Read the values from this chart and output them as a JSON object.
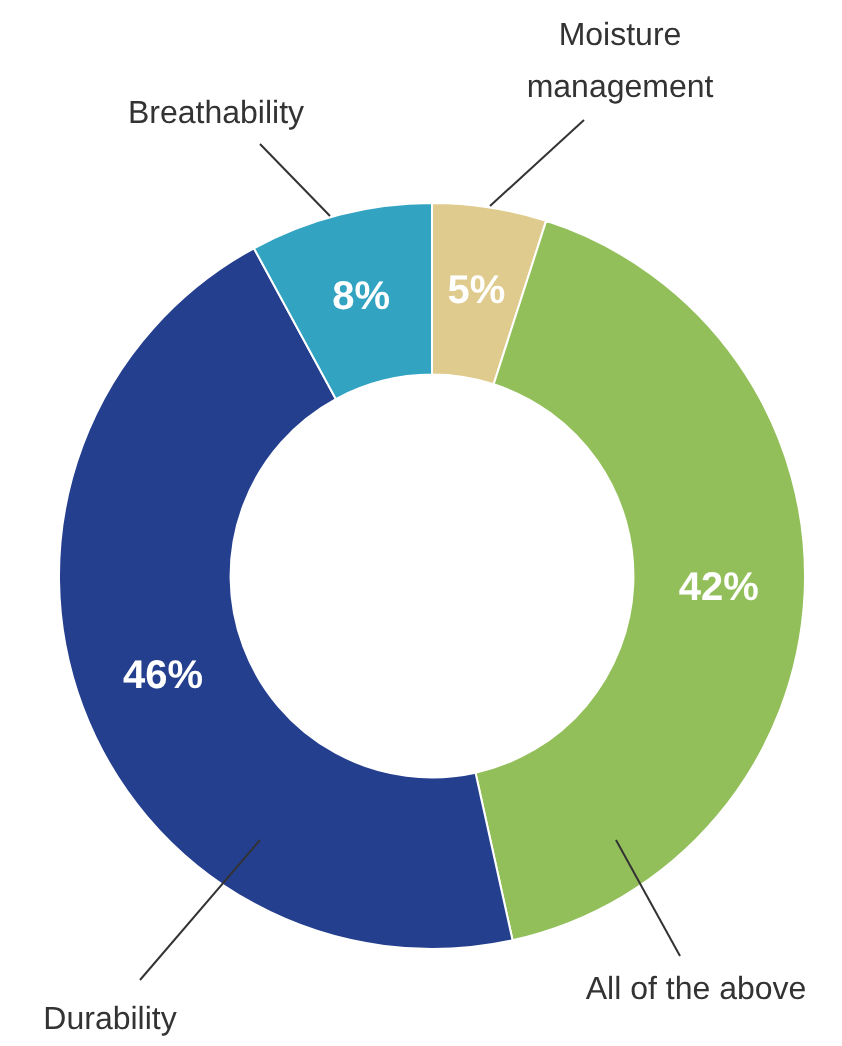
{
  "chart_data": {
    "type": "donut",
    "categories": [
      "Moisture management",
      "All of the above",
      "Durability",
      "Breathability"
    ],
    "values": [
      5,
      42,
      46,
      8
    ],
    "value_labels": [
      "5%",
      "42%",
      "46%",
      "8%"
    ],
    "colors": [
      "#e0cb8f",
      "#93bf5a",
      "#253f8f",
      "#33a3c2"
    ],
    "legend": false
  }
}
